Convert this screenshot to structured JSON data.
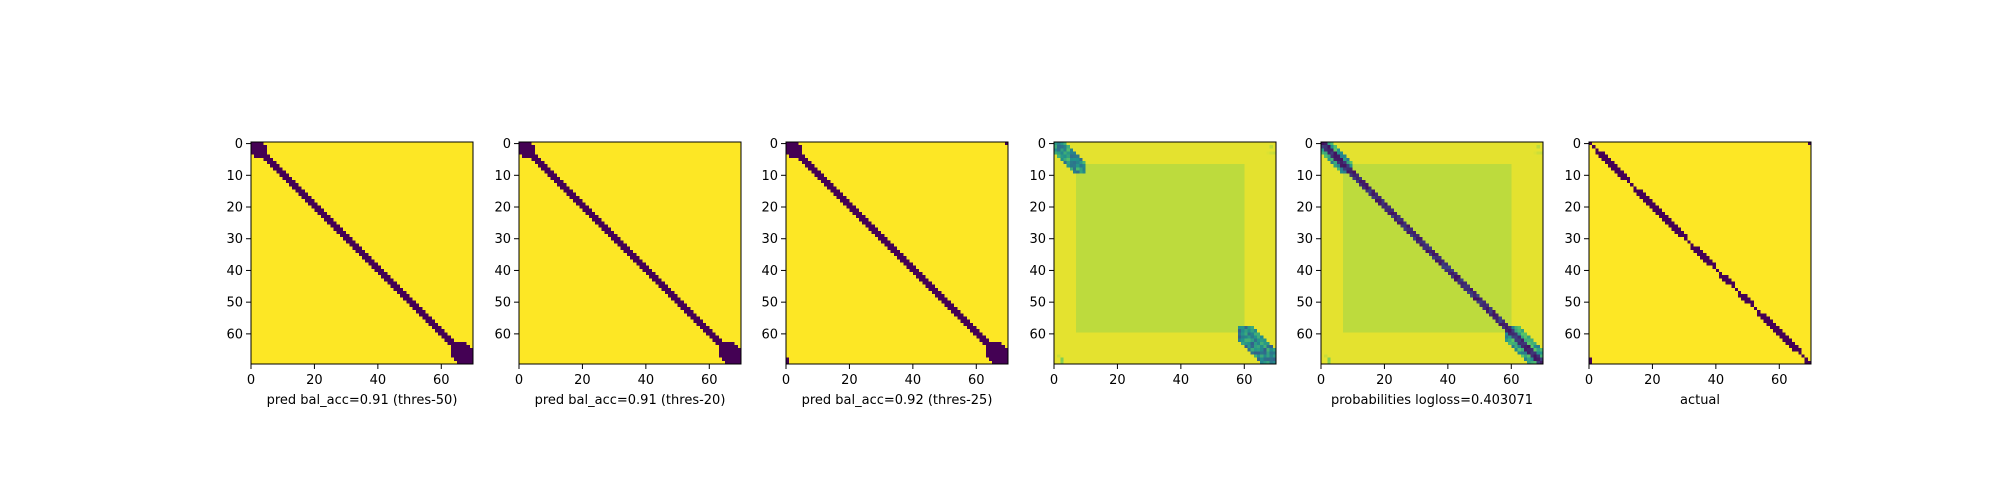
{
  "figure": {
    "colors": {
      "background": "#ffffff",
      "axis": "#000000",
      "viridis_low": "#440154",
      "viridis_mid_low": "#31688e",
      "viridis_mid": "#35b779",
      "viridis_high": "#fde725",
      "plateau": "#dfe319"
    }
  },
  "chart_data": [
    {
      "type": "heatmap",
      "title": "",
      "xlabel": "pred bal_acc=0.91 (thres-50)",
      "ylabel": "",
      "xlim": [
        0,
        70
      ],
      "ylim": [
        70,
        0
      ],
      "xticks": [
        0,
        20,
        40,
        60
      ],
      "yticks": [
        0,
        10,
        20,
        30,
        40,
        50,
        60
      ],
      "grid": false,
      "legend": "none",
      "colormap": "viridis",
      "pattern": "binary diagonal band: value 0 near main diagonal, 1 elsewhere",
      "band": [
        {
          "start": 0,
          "end": 70,
          "halfwidth": 1.6
        }
      ],
      "corner_blobs": [
        {
          "corner": "top-left",
          "size": 3
        },
        {
          "corner": "bottom-right",
          "size": 4
        }
      ]
    },
    {
      "type": "heatmap",
      "title": "",
      "xlabel": "pred bal_acc=0.91 (thres-20)",
      "ylabel": "",
      "xlim": [
        0,
        70
      ],
      "ylim": [
        70,
        0
      ],
      "xticks": [
        0,
        20,
        40,
        60
      ],
      "yticks": [
        0,
        10,
        20,
        30,
        40,
        50,
        60
      ],
      "grid": false,
      "legend": "none",
      "colormap": "viridis",
      "pattern": "binary diagonal band: value 0 near main diagonal, 1 elsewhere",
      "band": [
        {
          "start": 0,
          "end": 70,
          "halfwidth": 1.6
        }
      ],
      "corner_blobs": [
        {
          "corner": "top-left",
          "size": 3
        },
        {
          "corner": "bottom-right",
          "size": 4
        }
      ]
    },
    {
      "type": "heatmap",
      "title": "",
      "xlabel": "pred bal_acc=0.92 (thres-25)",
      "ylabel": "",
      "xlim": [
        0,
        70
      ],
      "ylim": [
        70,
        0
      ],
      "xticks": [
        0,
        20,
        40,
        60
      ],
      "yticks": [
        0,
        10,
        20,
        30,
        40,
        50,
        60
      ],
      "grid": false,
      "legend": "none",
      "colormap": "viridis",
      "pattern": "binary diagonal band with off-diagonal corner pixels",
      "band": [
        {
          "start": 0,
          "end": 70,
          "halfwidth": 1.6
        }
      ],
      "corner_blobs": [
        {
          "corner": "top-left",
          "size": 3
        },
        {
          "corner": "bottom-right",
          "size": 4
        }
      ],
      "corner_points": [
        {
          "x": 69,
          "y": 0
        },
        {
          "x": 0,
          "y": 68
        },
        {
          "x": 0,
          "y": 69
        }
      ]
    },
    {
      "type": "heatmap",
      "title": "",
      "xlabel": "",
      "ylabel": "",
      "xlim": [
        0,
        70
      ],
      "ylim": [
        70,
        0
      ],
      "xticks": [
        0,
        20,
        40,
        60
      ],
      "yticks": [
        0,
        10,
        20,
        30,
        40,
        50,
        60
      ],
      "grid": false,
      "legend": "none",
      "colormap": "viridis",
      "pattern": "continuous values: ~0.95 outer frame, ~0.9 inner plateau, low values only in top-left and bottom-right corners",
      "plateau": {
        "from": 7,
        "to": 59,
        "value": 0.9
      },
      "outer_value": 0.96,
      "corner_patches": [
        {
          "corner": "top-left",
          "range": [
            0,
            9
          ],
          "value": 0.35
        },
        {
          "corner": "bottom-right",
          "range": [
            58,
            70
          ],
          "value": 0.3
        },
        {
          "corner": "top-right",
          "range": [
            66,
            70
          ],
          "value": 0.85
        },
        {
          "corner": "bottom-left",
          "range": [
            0,
            3
          ],
          "value": 0.8
        }
      ]
    },
    {
      "type": "heatmap",
      "title": "",
      "xlabel": "probabilities logloss=0.403071",
      "ylabel": "",
      "xlim": [
        0,
        70
      ],
      "ylim": [
        70,
        0
      ],
      "xticks": [
        0,
        20,
        40,
        60
      ],
      "yticks": [
        0,
        10,
        20,
        30,
        40,
        50,
        60
      ],
      "grid": false,
      "legend": "none",
      "colormap": "viridis",
      "pattern": "continuous values: ~0.95 outer frame, ~0.9 inner plateau, dark diagonal band",
      "plateau": {
        "from": 7,
        "to": 59,
        "value": 0.9
      },
      "outer_value": 0.96,
      "band": [
        {
          "start": 0,
          "end": 70,
          "halfwidth": 1.3
        }
      ],
      "corner_patches": [
        {
          "corner": "top-left",
          "range": [
            0,
            9
          ],
          "value": 0.4
        },
        {
          "corner": "bottom-right",
          "range": [
            58,
            70
          ],
          "value": 0.4
        },
        {
          "corner": "top-right",
          "range": [
            66,
            70
          ],
          "value": 0.85
        },
        {
          "corner": "bottom-left",
          "range": [
            0,
            3
          ],
          "value": 0.8
        }
      ]
    },
    {
      "type": "heatmap",
      "title": "",
      "xlabel": "actual",
      "ylabel": "",
      "xlim": [
        0,
        70
      ],
      "ylim": [
        70,
        0
      ],
      "xticks": [
        0,
        20,
        40,
        60
      ],
      "yticks": [
        0,
        10,
        20,
        30,
        40,
        50,
        60
      ],
      "grid": false,
      "legend": "none",
      "colormap": "viridis",
      "pattern": "binary jagged diagonal band with isolated corner pixels",
      "band": [
        {
          "start": 0,
          "end": 70,
          "halfwidth": 1.1,
          "jitter": true
        }
      ],
      "corner_points": [
        {
          "x": 69,
          "y": 0
        },
        {
          "x": 0,
          "y": 69
        },
        {
          "x": 0,
          "y": 68
        }
      ]
    }
  ]
}
